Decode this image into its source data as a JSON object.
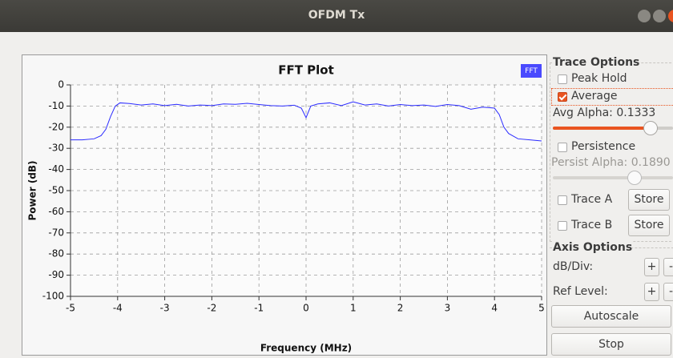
{
  "window": {
    "title": "OFDM Tx"
  },
  "chart_data": {
    "type": "line",
    "title": "FFT Plot",
    "x_label": "Frequency (MHz)",
    "y_label": "Power (dB)",
    "x": [
      -5,
      -4.75,
      -4.5,
      -4.35,
      -4.25,
      -4.15,
      -4.05,
      -3.95,
      -3.75,
      -3.5,
      -3.25,
      -3,
      -2.75,
      -2.5,
      -2.25,
      -2,
      -1.75,
      -1.5,
      -1.25,
      -1,
      -0.75,
      -0.5,
      -0.25,
      -0.1,
      0,
      0.1,
      0.25,
      0.5,
      0.75,
      1,
      1.25,
      1.5,
      1.75,
      2,
      2.25,
      2.5,
      2.75,
      3,
      3.25,
      3.5,
      3.75,
      4,
      4.1,
      4.2,
      4.3,
      4.5,
      4.75,
      5
    ],
    "series": [
      {
        "name": "FFT",
        "color": "#2b2bff",
        "values": [
          -26,
          -26,
          -25.5,
          -24,
          -21,
          -15,
          -10,
          -8.5,
          -8.8,
          -9.5,
          -9,
          -9.8,
          -9.2,
          -10,
          -9.5,
          -9.8,
          -9,
          -9.2,
          -8.7,
          -9.3,
          -9.8,
          -10,
          -9.6,
          -11,
          -15.5,
          -10,
          -9,
          -8.5,
          -9.8,
          -8,
          -9.5,
          -9,
          -10,
          -9.3,
          -9.8,
          -9.5,
          -10.2,
          -9.3,
          -9.8,
          -11.5,
          -10.5,
          -11,
          -14,
          -20,
          -23,
          -25.5,
          -26,
          -26.5
        ]
      }
    ],
    "xlim": [
      -5,
      5
    ],
    "ylim": [
      -100,
      0
    ],
    "xticks": [
      -5,
      -4,
      -3,
      -2,
      -1,
      0,
      1,
      2,
      3,
      4,
      5
    ],
    "yticks": [
      0,
      -10,
      -20,
      -30,
      -40,
      -50,
      -60,
      -70,
      -80,
      -90,
      -100
    ],
    "grid": true,
    "legend": "top-right"
  },
  "trace_options": {
    "title": "Trace Options",
    "peak_hold": {
      "label": "Peak Hold",
      "checked": false
    },
    "average": {
      "label": "Average",
      "checked": true
    },
    "avg_alpha": "Avg Alpha: 0.1333",
    "persistence": {
      "label": "Persistence",
      "checked": false
    },
    "persist_alpha": "Persist Alpha: 0.1890",
    "trace_a": {
      "label": "Trace A",
      "checked": false
    },
    "trace_a_button": "Store",
    "trace_b": {
      "label": "Trace B",
      "checked": false
    },
    "trace_b_button": "Store"
  },
  "axis_options": {
    "title": "Axis Options",
    "db_div": "dB/Div:",
    "db_div_buttons": [
      "+",
      "-"
    ],
    "ref_level": "Ref Level:",
    "ref_level_buttons": [
      "+",
      "-"
    ]
  },
  "buttons": [
    "Autoscale",
    "Stop"
  ]
}
